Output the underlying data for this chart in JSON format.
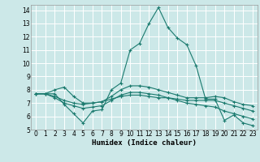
{
  "title": "",
  "xlabel": "Humidex (Indice chaleur)",
  "bg_color": "#cce8e8",
  "line_color": "#1a7a6e",
  "grid_color": "#ffffff",
  "xlim": [
    -0.5,
    23.5
  ],
  "ylim": [
    5,
    14.4
  ],
  "yticks": [
    5,
    6,
    7,
    8,
    9,
    10,
    11,
    12,
    13,
    14
  ],
  "xticks": [
    0,
    1,
    2,
    3,
    4,
    5,
    6,
    7,
    8,
    9,
    10,
    11,
    12,
    13,
    14,
    15,
    16,
    17,
    18,
    19,
    20,
    21,
    22,
    23
  ],
  "lines": [
    {
      "x": [
        0,
        1,
        2,
        3,
        4,
        5,
        6,
        7,
        8,
        9,
        10,
        11,
        12,
        13,
        14,
        15,
        16,
        17,
        18,
        19,
        20,
        21,
        22,
        23
      ],
      "y": [
        7.7,
        7.7,
        7.7,
        6.9,
        6.2,
        5.5,
        6.4,
        6.5,
        8.0,
        8.5,
        11.0,
        11.5,
        13.0,
        14.2,
        12.7,
        11.9,
        11.4,
        9.8,
        7.3,
        7.3,
        5.7,
        6.1,
        5.5,
        5.3
      ]
    },
    {
      "x": [
        0,
        1,
        2,
        3,
        4,
        5,
        6,
        7,
        8,
        9,
        10,
        11,
        12,
        13,
        14,
        15,
        16,
        17,
        18,
        19,
        20,
        21,
        22,
        23
      ],
      "y": [
        7.7,
        7.7,
        7.5,
        7.2,
        7.0,
        6.9,
        7.0,
        7.1,
        7.3,
        7.5,
        7.6,
        7.6,
        7.5,
        7.4,
        7.4,
        7.3,
        7.2,
        7.2,
        7.2,
        7.2,
        7.0,
        6.8,
        6.6,
        6.4
      ]
    },
    {
      "x": [
        0,
        1,
        2,
        3,
        4,
        5,
        6,
        7,
        8,
        9,
        10,
        11,
        12,
        13,
        14,
        15,
        16,
        17,
        18,
        19,
        20,
        21,
        22,
        23
      ],
      "y": [
        7.7,
        7.7,
        7.4,
        7.0,
        6.8,
        6.6,
        6.7,
        6.8,
        7.2,
        7.6,
        7.8,
        7.8,
        7.7,
        7.6,
        7.4,
        7.2,
        7.0,
        6.9,
        6.8,
        6.7,
        6.4,
        6.2,
        6.0,
        5.8
      ]
    },
    {
      "x": [
        0,
        1,
        2,
        3,
        4,
        5,
        6,
        7,
        8,
        9,
        10,
        11,
        12,
        13,
        14,
        15,
        16,
        17,
        18,
        19,
        20,
        21,
        22,
        23
      ],
      "y": [
        7.7,
        7.7,
        8.0,
        8.2,
        7.5,
        7.0,
        7.0,
        7.1,
        7.5,
        8.0,
        8.3,
        8.3,
        8.2,
        8.0,
        7.8,
        7.6,
        7.4,
        7.4,
        7.4,
        7.5,
        7.4,
        7.1,
        6.9,
        6.8
      ]
    }
  ]
}
